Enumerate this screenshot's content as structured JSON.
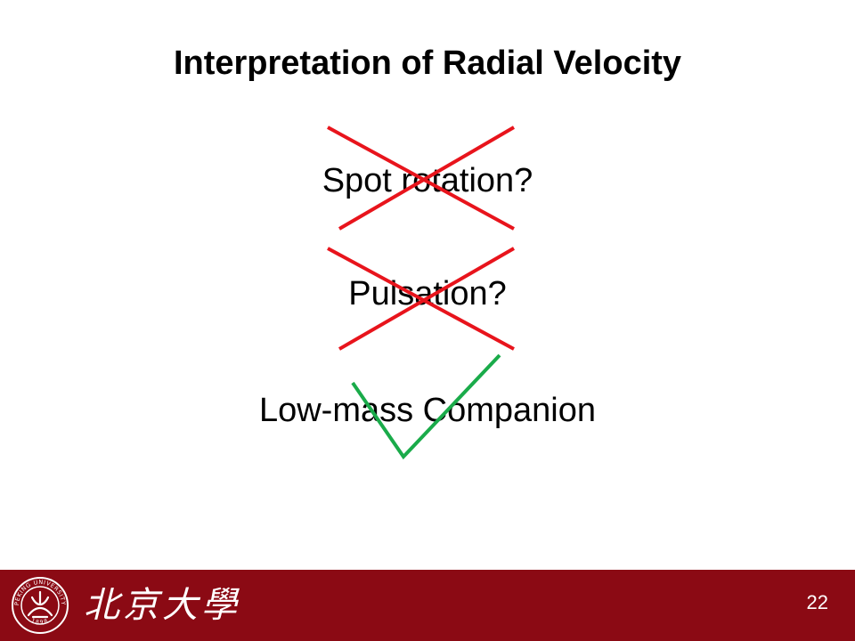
{
  "slide": {
    "title": "Interpretation of Radial Velocity",
    "options": [
      {
        "label": "Spot rotation?",
        "verdict": "rejected"
      },
      {
        "label": "Pulsation?",
        "verdict": "rejected"
      },
      {
        "label": "Low-mass Companion",
        "verdict": "accepted"
      }
    ]
  },
  "footer": {
    "university_name": "北京大學",
    "seal_text": "PEKING UNIVERSITY",
    "seal_year": "1898",
    "page_number": "22"
  },
  "colors": {
    "cross": "#e8141c",
    "check": "#1aab4a",
    "footer_bg": "#8b0a14"
  }
}
